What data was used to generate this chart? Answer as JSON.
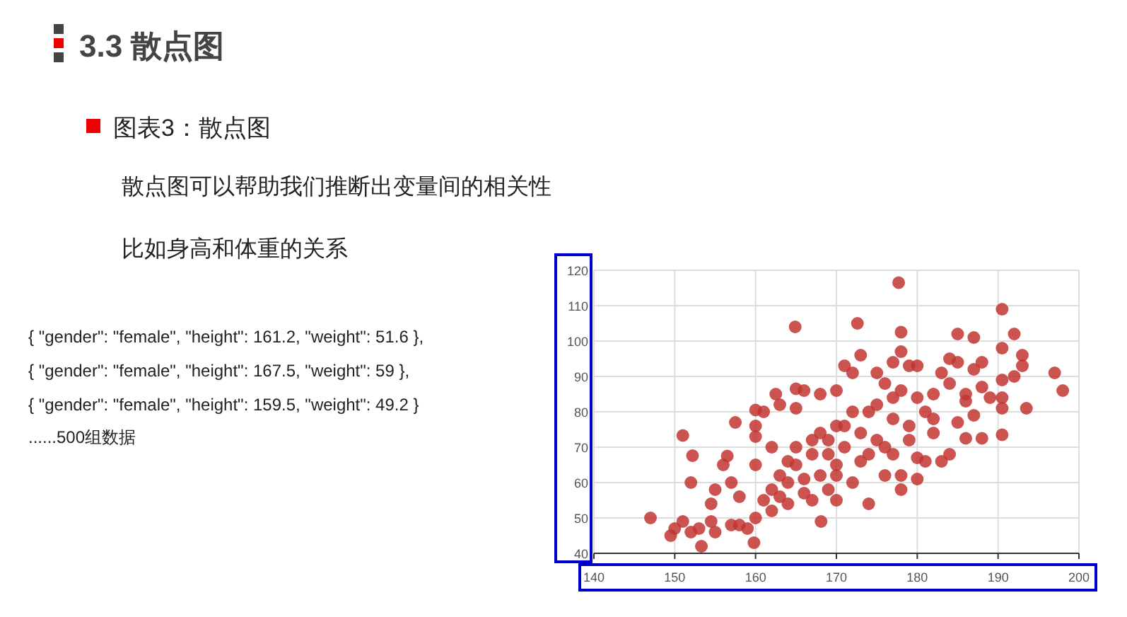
{
  "chart_data": {
    "type": "scatter",
    "title": "3.3 散点图",
    "subtitle": "图表3：散点图",
    "annotations": [
      "散点图可以帮助我们推断出变量间的相关性",
      "比如身高和体重的关系",
      "{ \"gender\": \"female\", \"height\": 161.2, \"weight\": 51.6 },",
      "{ \"gender\": \"female\", \"height\": 167.5, \"weight\": 59 },",
      "{ \"gender\": \"female\", \"height\": 159.5, \"weight\": 49.2 }",
      "......500组数据"
    ],
    "series": [
      {
        "color": "#c23531",
        "x": [
          147,
          149.5,
          150,
          151,
          151,
          152,
          152.2,
          152,
          153,
          153.3,
          154.5,
          155,
          154.5,
          155,
          156,
          156.5,
          157.5,
          157,
          157,
          158,
          158,
          159,
          159.8,
          160,
          161,
          160,
          160,
          160,
          160,
          161,
          162,
          162,
          163,
          162.5,
          163,
          164,
          164,
          164.9,
          165,
          165,
          165,
          165,
          166,
          166,
          167,
          167,
          168,
          168.1,
          168,
          168,
          169,
          169,
          170,
          170,
          170,
          170,
          171,
          171,
          172,
          172,
          173,
          172.6,
          173,
          174,
          174,
          175,
          175,
          175,
          176,
          176,
          177,
          177,
          177,
          177.7,
          178,
          178,
          178,
          178,
          178,
          179,
          179,
          180,
          180,
          180,
          181,
          181,
          182,
          182,
          183,
          183,
          184,
          184,
          185,
          185,
          185,
          186,
          186,
          187,
          187,
          187,
          188,
          188,
          188,
          189,
          190.5,
          190.5,
          190.5,
          190.5,
          190.5,
          190.5,
          192,
          192,
          193,
          193,
          193.5,
          197,
          198,
          162,
          163,
          164,
          166,
          167,
          169,
          170,
          171,
          172,
          173,
          174,
          176,
          177,
          179,
          180,
          182,
          184,
          186
        ],
        "values": [
          50,
          45,
          47,
          49,
          73.3,
          60,
          67.6,
          46,
          47,
          42,
          49,
          46,
          54,
          58,
          65,
          67.5,
          77,
          60,
          48,
          56,
          48,
          47,
          43,
          80.5,
          80,
          76,
          73,
          65,
          50,
          55,
          58,
          70,
          82,
          85,
          62,
          54,
          60,
          104,
          86.5,
          81,
          70,
          65,
          86,
          57,
          72,
          55,
          85,
          49,
          62,
          74,
          68,
          58,
          86,
          76,
          65,
          55,
          93,
          70,
          91,
          60,
          96,
          105,
          74,
          54,
          68,
          82,
          91,
          72,
          62,
          88,
          94,
          78,
          68,
          116.5,
          102.5,
          97,
          58,
          62,
          86,
          93,
          72,
          93,
          67,
          61,
          80,
          66,
          74,
          85,
          91,
          66,
          95,
          68,
          102,
          94,
          77,
          85,
          72.5,
          101,
          92,
          79,
          94,
          87,
          72.5,
          84,
          109,
          98,
          89,
          84,
          81,
          73.5,
          102,
          90,
          96,
          93,
          81,
          91,
          86,
          52,
          56,
          66,
          61,
          68,
          72,
          62,
          76,
          80,
          66,
          80,
          70,
          84,
          76,
          84,
          78,
          88,
          83
        ]
      }
    ],
    "marker": "circle",
    "xlim": [
      140,
      200
    ],
    "xticks": [
      140,
      150,
      160,
      170,
      180,
      190,
      200
    ],
    "ylim": [
      40,
      120
    ],
    "yticks": [
      40,
      50,
      60,
      70,
      80,
      90,
      100,
      110,
      120
    ],
    "grid": true
  }
}
